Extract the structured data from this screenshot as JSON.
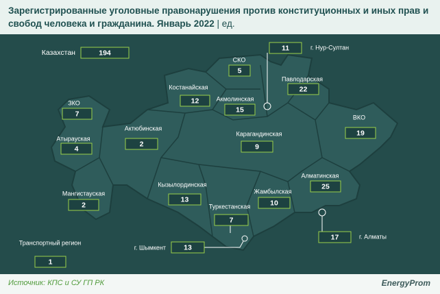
{
  "title": "Зарегистрированные уголовные правонарушения против конституционных и иных прав и свобод человека и гражданина. Январь 2022",
  "unit": "ед.",
  "regions": [
    {
      "name": "Казахстан",
      "value": 194
    },
    {
      "name": "г. Нур-Султан",
      "value": 11
    },
    {
      "name": "СКО",
      "value": 5
    },
    {
      "name": "Павлодарская",
      "value": 22
    },
    {
      "name": "Костанайская",
      "value": 12
    },
    {
      "name": "Акмолинская",
      "value": 15
    },
    {
      "name": "ЗКО",
      "value": 7
    },
    {
      "name": "ВКО",
      "value": 19
    },
    {
      "name": "Актюбинская",
      "value": 2
    },
    {
      "name": "Карагандинская",
      "value": 9
    },
    {
      "name": "Атырауская",
      "value": 4
    },
    {
      "name": "Алматинская",
      "value": 25
    },
    {
      "name": "Кызылординская",
      "value": 13
    },
    {
      "name": "Жамбылская",
      "value": 10
    },
    {
      "name": "Мангистауская",
      "value": 2
    },
    {
      "name": "Туркестанская",
      "value": 7
    },
    {
      "name": "г. Алматы",
      "value": 17
    },
    {
      "name": "г. Шымкент",
      "value": 13
    },
    {
      "name": "Транспортный регион",
      "value": 1
    }
  ],
  "source": "Источник: КПС и СУ ГП РК",
  "logo": "EnergyProm"
}
